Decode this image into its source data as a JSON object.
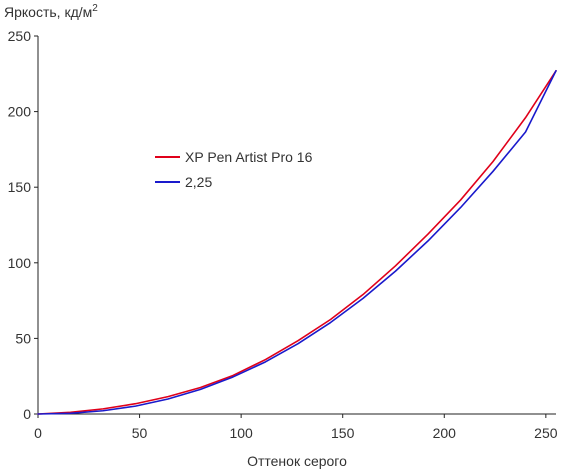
{
  "chart_data": {
    "type": "line",
    "title": "",
    "ylabel": "Яркость, кд/м",
    "ylabel_sup": "2",
    "xlabel": "Оттенок серого",
    "xlim": [
      0,
      255
    ],
    "ylim": [
      0,
      250
    ],
    "xticks": [
      0,
      50,
      100,
      150,
      200,
      250
    ],
    "yticks": [
      0,
      50,
      100,
      150,
      200,
      250
    ],
    "grid": false,
    "legend_position": "center-left",
    "series": [
      {
        "name": "XP Pen Artist Pro 16",
        "color": "#e0001a",
        "x": [
          0,
          16,
          32,
          48,
          64,
          80,
          96,
          112,
          128,
          144,
          160,
          176,
          192,
          208,
          224,
          240,
          255
        ],
        "y": [
          0,
          1.1,
          3.4,
          6.8,
          11.5,
          17.5,
          25.5,
          36,
          48.5,
          62.5,
          79,
          98,
          119,
          141.5,
          167,
          196,
          227
        ]
      },
      {
        "name": "2,25",
        "color": "#1a1acc",
        "x": [
          0,
          16,
          32,
          48,
          64,
          80,
          96,
          112,
          128,
          144,
          160,
          176,
          192,
          208,
          224,
          240,
          255
        ],
        "y": [
          0,
          0.45,
          2.15,
          5.2,
          9.9,
          16.3,
          24.5,
          34.5,
          46.5,
          60.5,
          76.5,
          94.5,
          114.5,
          136.5,
          160.5,
          186.5,
          227
        ]
      }
    ]
  }
}
